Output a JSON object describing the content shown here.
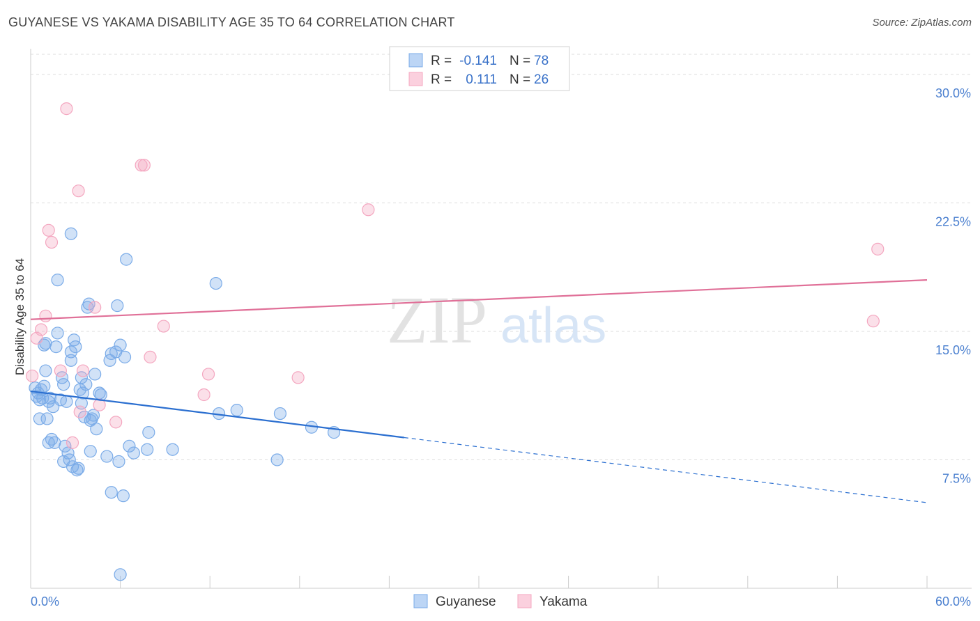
{
  "title": "GUYANESE VS YAKAMA DISABILITY AGE 35 TO 64 CORRELATION CHART",
  "source": "Source: ZipAtlas.com",
  "watermark": {
    "zip": "ZIP",
    "atlas": "atlas"
  },
  "chart_data": {
    "type": "scatter",
    "xlabel": "",
    "ylabel": "Disability Age 35 to 64",
    "xlim": [
      0,
      60
    ],
    "ylim": [
      0,
      31.5
    ],
    "x_tick_labels": [
      {
        "v": 0,
        "label": "0.0%"
      },
      {
        "v": 60,
        "label": "60.0%"
      }
    ],
    "y_ticks": [
      {
        "v": 7.5,
        "label": "7.5%"
      },
      {
        "v": 15,
        "label": "15.0%"
      },
      {
        "v": 22.5,
        "label": "22.5%"
      },
      {
        "v": 30,
        "label": "30.0%"
      }
    ],
    "legend": {
      "rows": [
        {
          "r_label": "R =",
          "r_value": "-0.141",
          "n_label": "N =",
          "n_value": "78"
        },
        {
          "r_label": "R =",
          "r_value": "0.111",
          "n_label": "N =",
          "n_value": "26"
        }
      ]
    },
    "series": [
      {
        "name": "Guyanese",
        "color": "#7aabe8",
        "line_color": "#2b6fd0",
        "trend": {
          "x0": 0,
          "y0": 11.5,
          "x1": 25,
          "y1": 8.8,
          "dash_x1": 60,
          "dash_y1": 5.0
        },
        "points": [
          [
            0.3,
            11.7
          ],
          [
            0.4,
            11.2
          ],
          [
            0.5,
            11.4
          ],
          [
            0.6,
            11.0
          ],
          [
            0.7,
            11.6
          ],
          [
            0.8,
            11.1
          ],
          [
            0.6,
            9.9
          ],
          [
            0.9,
            11.8
          ],
          [
            1.0,
            12.7
          ],
          [
            0.9,
            14.2
          ],
          [
            1.0,
            14.3
          ],
          [
            1.2,
            10.9
          ],
          [
            1.1,
            9.9
          ],
          [
            1.2,
            8.5
          ],
          [
            1.4,
            8.7
          ],
          [
            1.3,
            11.1
          ],
          [
            1.5,
            10.6
          ],
          [
            1.6,
            8.5
          ],
          [
            1.7,
            14.1
          ],
          [
            1.8,
            14.9
          ],
          [
            1.8,
            18.0
          ],
          [
            2.0,
            11.0
          ],
          [
            2.1,
            12.3
          ],
          [
            2.2,
            11.9
          ],
          [
            2.2,
            7.4
          ],
          [
            2.3,
            8.3
          ],
          [
            2.4,
            10.9
          ],
          [
            2.5,
            7.9
          ],
          [
            2.6,
            7.5
          ],
          [
            2.7,
            13.8
          ],
          [
            2.7,
            13.3
          ],
          [
            2.7,
            20.7
          ],
          [
            2.8,
            7.1
          ],
          [
            2.9,
            14.5
          ],
          [
            3.0,
            14.1
          ],
          [
            3.1,
            6.9
          ],
          [
            3.2,
            7.0
          ],
          [
            3.3,
            11.6
          ],
          [
            3.4,
            10.8
          ],
          [
            3.4,
            12.3
          ],
          [
            3.5,
            11.4
          ],
          [
            3.6,
            10.0
          ],
          [
            3.7,
            11.9
          ],
          [
            3.8,
            16.4
          ],
          [
            3.9,
            16.6
          ],
          [
            4.0,
            8.0
          ],
          [
            4.0,
            9.8
          ],
          [
            4.1,
            9.9
          ],
          [
            4.2,
            10.1
          ],
          [
            4.3,
            12.5
          ],
          [
            4.4,
            9.3
          ],
          [
            4.6,
            11.4
          ],
          [
            4.7,
            11.3
          ],
          [
            5.1,
            7.7
          ],
          [
            5.3,
            13.3
          ],
          [
            5.4,
            13.7
          ],
          [
            5.4,
            5.6
          ],
          [
            5.7,
            13.8
          ],
          [
            5.8,
            16.5
          ],
          [
            5.9,
            7.4
          ],
          [
            6.0,
            14.2
          ],
          [
            6.0,
            0.8
          ],
          [
            6.2,
            5.4
          ],
          [
            6.3,
            13.5
          ],
          [
            6.4,
            19.2
          ],
          [
            6.6,
            8.3
          ],
          [
            6.9,
            7.9
          ],
          [
            7.8,
            8.1
          ],
          [
            7.9,
            9.1
          ],
          [
            9.5,
            8.1
          ],
          [
            12.4,
            17.8
          ],
          [
            12.6,
            10.2
          ],
          [
            13.8,
            10.4
          ],
          [
            16.5,
            7.5
          ],
          [
            16.7,
            10.2
          ],
          [
            18.8,
            9.4
          ],
          [
            20.3,
            9.1
          ]
        ]
      },
      {
        "name": "Yakama",
        "color": "#f4a7c0",
        "line_color": "#e07098",
        "trend": {
          "x0": 0,
          "y0": 15.7,
          "x1": 60,
          "y1": 18.0
        },
        "points": [
          [
            0.1,
            12.4
          ],
          [
            0.4,
            14.6
          ],
          [
            0.7,
            15.1
          ],
          [
            1.0,
            15.9
          ],
          [
            1.2,
            20.9
          ],
          [
            1.4,
            20.2
          ],
          [
            2.0,
            12.7
          ],
          [
            2.4,
            28.0
          ],
          [
            2.8,
            8.5
          ],
          [
            3.2,
            23.2
          ],
          [
            3.3,
            10.3
          ],
          [
            3.5,
            12.7
          ],
          [
            4.3,
            16.4
          ],
          [
            4.6,
            10.7
          ],
          [
            5.7,
            9.7
          ],
          [
            7.4,
            24.7
          ],
          [
            7.6,
            24.7
          ],
          [
            8.0,
            13.5
          ],
          [
            8.9,
            15.3
          ],
          [
            11.6,
            11.3
          ],
          [
            11.9,
            12.5
          ],
          [
            17.9,
            12.3
          ],
          [
            22.6,
            22.1
          ],
          [
            56.4,
            15.6
          ],
          [
            56.7,
            19.8
          ]
        ]
      }
    ]
  }
}
